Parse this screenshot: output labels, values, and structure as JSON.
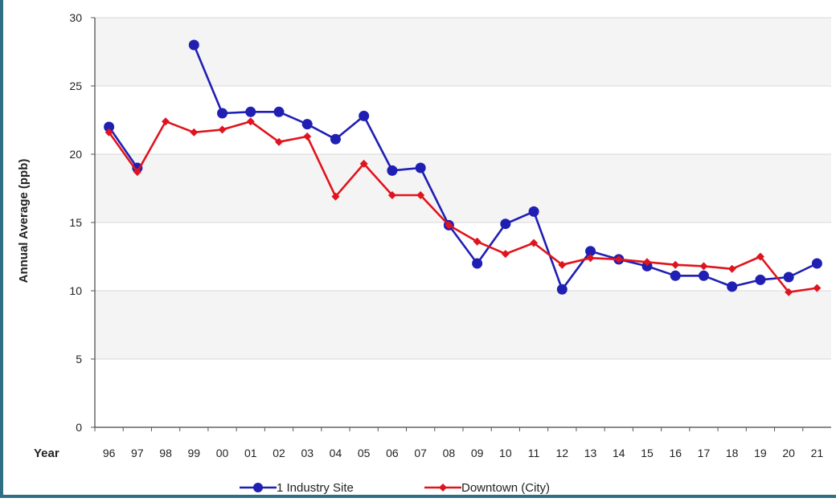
{
  "chart_data": {
    "type": "line",
    "xlabel": "Year",
    "ylabel": "Annual Average (ppb)",
    "ylim": [
      0,
      30
    ],
    "yticks": [
      "0",
      "5",
      "10",
      "15",
      "20",
      "25",
      "30"
    ],
    "categories": [
      "96",
      "97",
      "98",
      "99",
      "00",
      "01",
      "02",
      "03",
      "04",
      "05",
      "06",
      "07",
      "08",
      "09",
      "10",
      "11",
      "12",
      "13",
      "14",
      "15",
      "16",
      "17",
      "18",
      "19",
      "20",
      "21"
    ],
    "grid": true,
    "legend_position": "bottom",
    "series": [
      {
        "name": "1 Industry Site",
        "color": "#1f1fb4",
        "marker": "circle",
        "values": [
          22.0,
          19.0,
          null,
          28.0,
          23.0,
          23.1,
          23.1,
          22.2,
          21.1,
          22.8,
          18.8,
          19.0,
          14.8,
          12.0,
          14.9,
          15.8,
          10.1,
          12.9,
          12.3,
          11.8,
          11.1,
          11.1,
          10.3,
          10.8,
          11.0,
          12.0
        ]
      },
      {
        "name": "Downtown (City)",
        "color": "#e0141e",
        "marker": "diamond",
        "values": [
          21.6,
          18.7,
          22.4,
          21.6,
          21.8,
          22.4,
          20.9,
          21.3,
          16.9,
          19.3,
          17.0,
          17.0,
          14.8,
          13.6,
          12.7,
          13.5,
          11.9,
          12.4,
          12.3,
          12.1,
          11.9,
          11.8,
          11.6,
          12.5,
          9.9,
          10.2
        ]
      }
    ]
  }
}
